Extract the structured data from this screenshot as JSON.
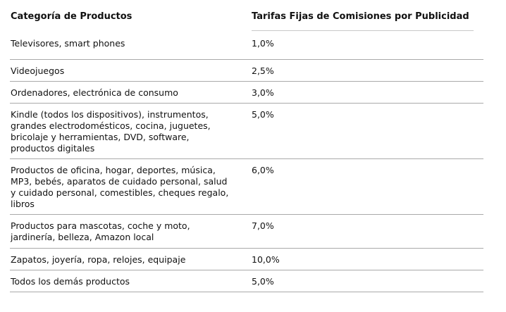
{
  "table": {
    "headers": {
      "category": "Categoría de Productos",
      "rate": "Tarifas Fijas de Comisiones por Publicidad"
    },
    "rows": [
      {
        "category": "Televisores, smart phones",
        "rate": "1,0%"
      },
      {
        "category": "Videojuegos",
        "rate": "2,5%"
      },
      {
        "category": "Ordenadores, electrónica de consumo",
        "rate": "3,0%"
      },
      {
        "category": "Kindle (todos los dispositivos), instrumentos, grandes electrodomésticos, cocina, juguetes, bricolaje y herramientas, DVD, software, productos digitales",
        "rate": "5,0%"
      },
      {
        "category": "Productos de oficina, hogar, deportes, música, MP3, bebés, aparatos de cuidado personal, salud y cuidado personal, comestibles, cheques regalo, libros",
        "rate": "6,0%"
      },
      {
        "category": "Productos para mascotas, coche y moto, jardinería, belleza, Amazon local",
        "rate": "7,0%"
      },
      {
        "category": "Zapatos, joyería, ropa, relojes, equipaje",
        "rate": "10,0%"
      },
      {
        "category": "Todos los demás productos",
        "rate": "5,0%"
      }
    ]
  }
}
